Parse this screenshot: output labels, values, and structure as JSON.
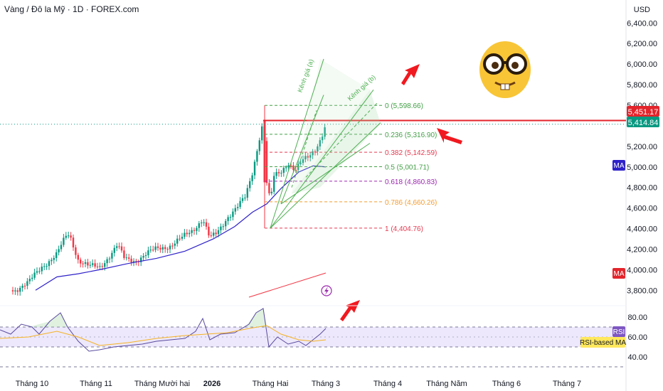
{
  "title": "Vàng / Đô la Mỹ · 1D · FOREX.com",
  "currency": "USD",
  "colors": {
    "up": "#089981",
    "down": "#f23645",
    "ma": "#2f22c9",
    "rsi": "#5a4a9e",
    "rsi_ma": "#f5b223",
    "rsi_band_fill": "#ede8fb",
    "fib_green": "#43a047",
    "fib_red": "#e53950",
    "fib_purple": "#9c27b0",
    "fib_orange": "#f59c2f",
    "pitchfork_green": "#4caf50",
    "arrow_red": "#f0191f",
    "resistance": "#e3242b"
  },
  "price_axis": {
    "labels": [
      "6,400.00",
      "6,200.00",
      "6,000.00",
      "5,800.00",
      "5,600.00",
      "5,200.00",
      "5,000.00",
      "4,800.00",
      "4,600.00",
      "4,400.00",
      "4,200.00",
      "4,000.00",
      "3,800.00"
    ],
    "values": [
      6400,
      6200,
      6000,
      5800,
      5600,
      5200,
      5000,
      4800,
      4600,
      4400,
      4200,
      4000,
      3800
    ]
  },
  "rsi_axis": {
    "labels": [
      "80.00",
      "60.00",
      "40.00"
    ],
    "values": [
      80,
      60,
      40
    ]
  },
  "time_axis": {
    "labels": [
      "Tháng 10",
      "Tháng 11",
      "Tháng Mười hai",
      "2026",
      "Tháng Hai",
      "Tháng 3",
      "Tháng 4",
      "Tháng Năm",
      "Tháng 6",
      "Tháng 7"
    ]
  },
  "price_tags": {
    "resistance": "5,451.17",
    "last": "5,414.84"
  },
  "badges": {
    "ma_top": "MA",
    "ma_bottom": "MA",
    "rsi": "RSI",
    "rsi_ma": "RSI-based MA"
  },
  "fibonacci": [
    {
      "label": "0 (5,598.66)",
      "price": 5598.66,
      "color": "#43a047"
    },
    {
      "label": "0.236 (5,316.90)",
      "price": 5316.9,
      "color": "#43a047"
    },
    {
      "label": "0.382 (5,142.59)",
      "price": 5142.59,
      "color": "#e53950"
    },
    {
      "label": "0.5 (5,001.71)",
      "price": 5001.71,
      "color": "#43a047"
    },
    {
      "label": "0.618 (4,860.83)",
      "price": 4860.83,
      "color": "#9c27b0"
    },
    {
      "label": "0.786 (4,660.26)",
      "price": 4660.26,
      "color": "#f59c2f"
    },
    {
      "label": "1 (4,404.76)",
      "price": 4404.76,
      "color": "#e53950"
    }
  ],
  "pitchfork_labels": [
    "Kênh giá (a)",
    "Kênh giá (b)"
  ],
  "emoji_icon": "nerd-face-icon",
  "bolt_icon": "lightning-bolt-icon",
  "chart_data": [
    {
      "type": "line",
      "note_series": "daily candlesticks approximated by close values",
      "x": [
        "Tháng 10",
        "Tháng 11",
        "Tháng Mười hai",
        "2026",
        "Tháng Hai",
        "Tháng 3"
      ],
      "series": [
        {
          "name": "MA",
          "values": [
            3780,
            3960,
            4130,
            4330,
            4620,
            5010
          ]
        }
      ],
      "ylim": [
        3700,
        6450
      ]
    },
    {
      "type": "line",
      "series": [
        {
          "name": "RSI",
          "values": [
            72,
            55,
            62,
            58,
            76,
            48,
            67
          ]
        },
        {
          "name": "RSI-based MA",
          "values": [
            63,
            60,
            58,
            61,
            66,
            58,
            58
          ]
        }
      ],
      "ylim": [
        30,
        90
      ]
    }
  ]
}
